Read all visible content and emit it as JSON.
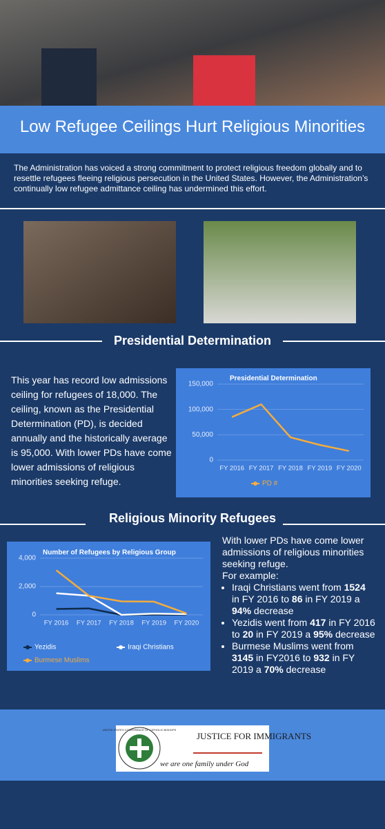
{
  "header": {
    "title": "Low Refugee Ceilings Hurt Religious Minorities"
  },
  "intro": "The Administration has voiced a strong commitment to protect religious freedom globally and to resettle refugees fleeing religious persecution in the United States. However, the Administration’s continually low refugee admittance ceiling has undermined this effort.",
  "pd_section": {
    "heading": "Presidential Determination",
    "text": "This year has record low admissions ceiling for refugees of 18,000. The ceiling, known as the Presidential Determination (PD), is decided annually and the historically average is 95,000. With lower PDs have come lower admissions of religious minorities seeking refuge.",
    "chart": {
      "type": "line",
      "title": "Presidential Determination",
      "categories": [
        "FY 2016",
        "FY 2017",
        "FY 2018",
        "FY 2019",
        "FY 2020"
      ],
      "series": [
        {
          "name": "PD #",
          "color": "#f4ac3c",
          "values": [
            85000,
            110000,
            45000,
            30000,
            18000
          ]
        }
      ],
      "ylim": [
        0,
        150000
      ],
      "yticks": [
        0,
        {
          "value": 50000,
          "label": "50,000"
        },
        {
          "value": 100000,
          "label": "100,000"
        },
        {
          "value": 150000,
          "label": "150,000"
        }
      ],
      "grid": true,
      "legend": "bottom"
    }
  },
  "rm_section": {
    "heading": "Religious Minority Refugees",
    "chart": {
      "type": "line",
      "title": "Number of Refugees by Religious Group",
      "categories": [
        "FY 2016",
        "FY 2017",
        "FY 2018",
        "FY 2019",
        "FY 2020"
      ],
      "series": [
        {
          "name": "Yezidis",
          "color": "#0f2a4c",
          "values": [
            417,
            450,
            0,
            20,
            5
          ]
        },
        {
          "name": "Iraqi Christians",
          "color": "#ffffff",
          "values": [
            1524,
            1350,
            0,
            86,
            50
          ]
        },
        {
          "name": "Burmese Muslims",
          "color": "#f4ac3c",
          "values": [
            3145,
            1350,
            950,
            932,
            100
          ]
        }
      ],
      "ylim": [
        0,
        4000
      ],
      "yticks": [
        0,
        {
          "value": 2000,
          "label": "2,000"
        },
        {
          "value": 4000,
          "label": "4,000"
        }
      ],
      "grid": true,
      "legend": "bottom"
    },
    "lead": "With lower PDs have come lower admissions of religious minorities seeking refuge.",
    "example": "For example:",
    "items": [
      [
        "Iraqi Christians went from ",
        "1524",
        " in FY 2016 to ",
        "86",
        " in FY 2019 a ",
        "94%",
        " decrease"
      ],
      [
        "Yezidis went from ",
        "417",
        " in FY 2016 to ",
        "20",
        " in FY 2019 a ",
        "95%",
        " decrease"
      ],
      [
        "Burmese Muslims went from ",
        "3145",
        " in FY2016 to ",
        "932",
        " in FY 2019 a ",
        "70%",
        " decrease"
      ]
    ]
  },
  "footer": {
    "logo_ring": "UNITED STATES CONFERENCE OF CATHOLIC BISHOPS",
    "logo_title": "JUSTICE FOR IMMIGRANTS",
    "logo_tagline": "we are one family under God"
  }
}
